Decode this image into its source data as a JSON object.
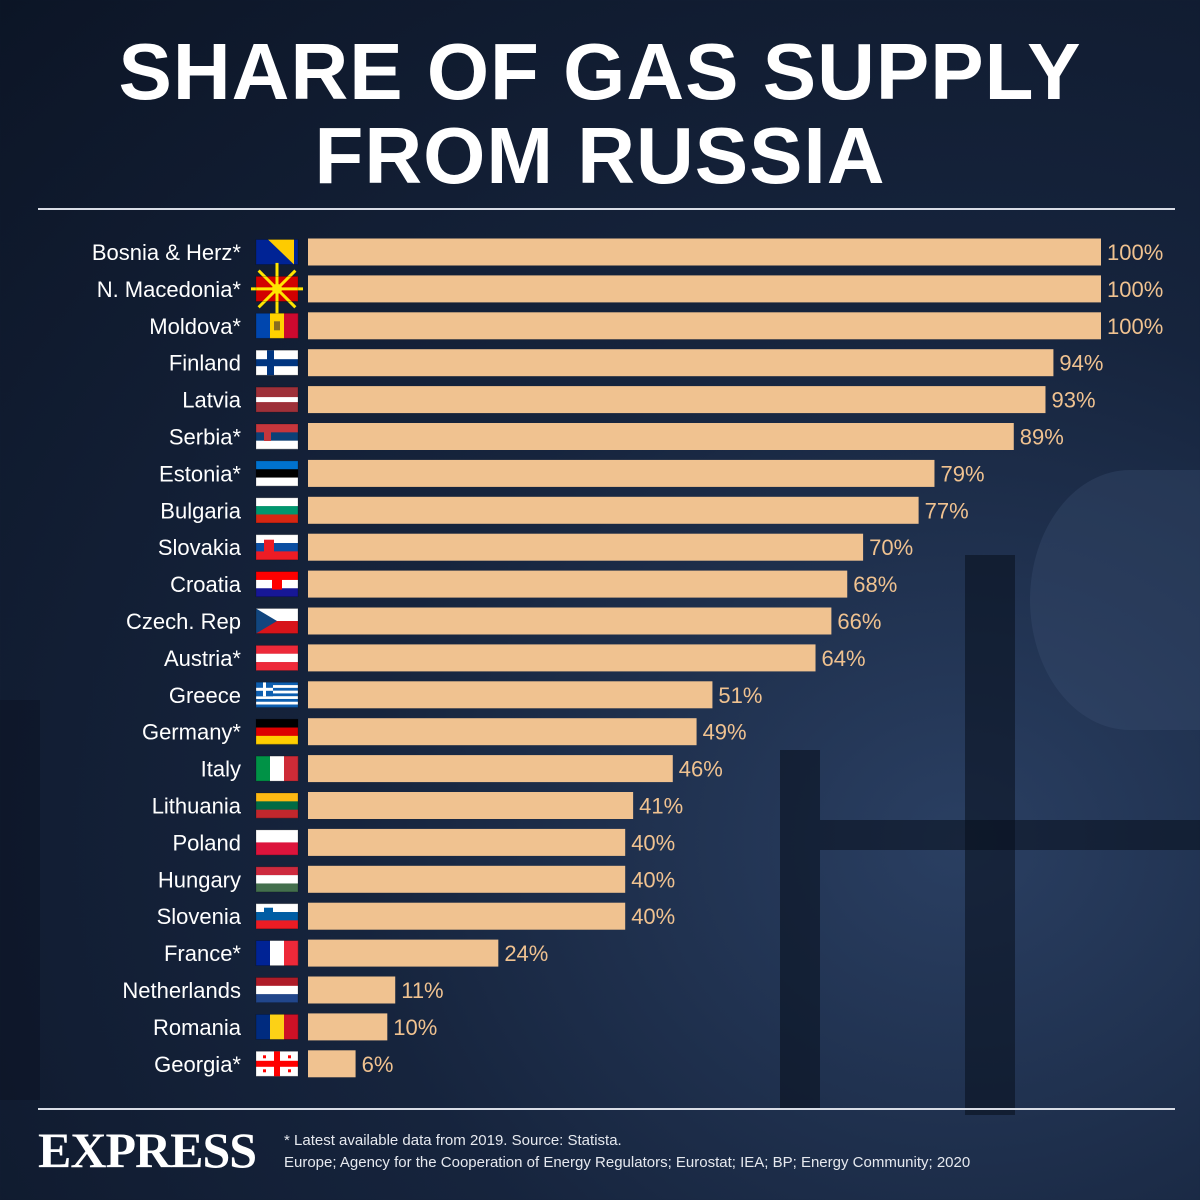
{
  "title_lines": [
    "SHARE OF GAS SUPPLY",
    "FROM RUSSIA"
  ],
  "colors": {
    "bar": "#f0c290",
    "value_label": "#f0c290",
    "country_label": "#ffffff",
    "rule": "#d9dde6"
  },
  "chart_data": {
    "type": "bar",
    "orientation": "horizontal",
    "title": "SHARE OF GAS SUPPLY FROM RUSSIA",
    "categories": [
      "Bosnia & Herz*",
      "N. Macedonia*",
      "Moldova*",
      "Finland",
      "Latvia",
      "Serbia*",
      "Estonia*",
      "Bulgaria",
      "Slovakia",
      "Croatia",
      "Czech. Rep",
      "Austria*",
      "Greece",
      "Germany*",
      "Italy",
      "Lithuania",
      "Poland",
      "Hungary",
      "Slovenia",
      "France*",
      "Netherlands",
      "Romania",
      "Georgia*"
    ],
    "values": [
      100,
      100,
      100,
      94,
      93,
      89,
      79,
      77,
      70,
      68,
      66,
      64,
      51,
      49,
      46,
      41,
      40,
      40,
      40,
      24,
      11,
      10,
      6
    ],
    "value_labels": [
      "100%",
      "100%",
      "100%",
      "94%",
      "93%",
      "89%",
      "79%",
      "77%",
      "70%",
      "68%",
      "66%",
      "64%",
      "51%",
      "49%",
      "46%",
      "41%",
      "40%",
      "40%",
      "40%",
      "24%",
      "11%",
      "10%",
      "6%"
    ],
    "flags": [
      "bosnia-flag-icon",
      "north-macedonia-flag-icon",
      "moldova-flag-icon",
      "finland-flag-icon",
      "latvia-flag-icon",
      "serbia-flag-icon",
      "estonia-flag-icon",
      "bulgaria-flag-icon",
      "slovakia-flag-icon",
      "croatia-flag-icon",
      "czech-flag-icon",
      "austria-flag-icon",
      "greece-flag-icon",
      "germany-flag-icon",
      "italy-flag-icon",
      "lithuania-flag-icon",
      "poland-flag-icon",
      "hungary-flag-icon",
      "slovenia-flag-icon",
      "france-flag-icon",
      "netherlands-flag-icon",
      "romania-flag-icon",
      "georgia-flag-icon"
    ],
    "xlim": [
      0,
      100
    ],
    "grid": false,
    "legend": "none"
  },
  "footer": {
    "logo": "EXPRESS",
    "note_line1": "* Latest available data from 2019. Source: Statista.",
    "note_line2": "Europe; Agency for the Cooperation of Energy Regulators; Eurostat; IEA; BP; Energy Community; 2020"
  }
}
